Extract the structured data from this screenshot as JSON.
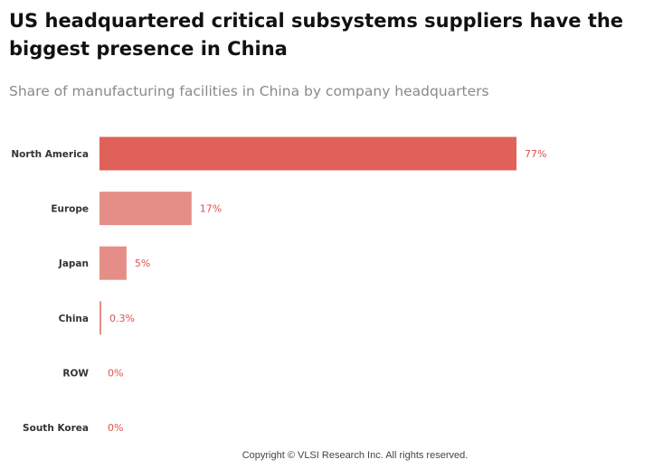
{
  "title": "US headquartered critical subsystems suppliers have the biggest presence in China",
  "subtitle": "Share of manufacturing facilities in China by company headquarters",
  "copyright": "Copyright © VLSI Research Inc.  All rights reserved.",
  "colors": {
    "primary_bar": "#e0605a",
    "secondary_bar": "#e58e87",
    "value_label": "#d9534f"
  },
  "chart_data": {
    "type": "bar",
    "orientation": "horizontal",
    "title": "US headquartered critical subsystems suppliers have the biggest presence in China",
    "subtitle": "Share of manufacturing facilities in China by company headquarters",
    "categories": [
      "North America",
      "Europe",
      "Japan",
      "China",
      "ROW",
      "South Korea"
    ],
    "values": [
      77,
      17,
      5,
      0.3,
      0,
      0
    ],
    "value_labels": [
      "77%",
      "17%",
      "5%",
      "0.3%",
      "0%",
      "0%"
    ],
    "unit": "%",
    "xlim": [
      0,
      77
    ],
    "grid": false,
    "legend": "none"
  }
}
